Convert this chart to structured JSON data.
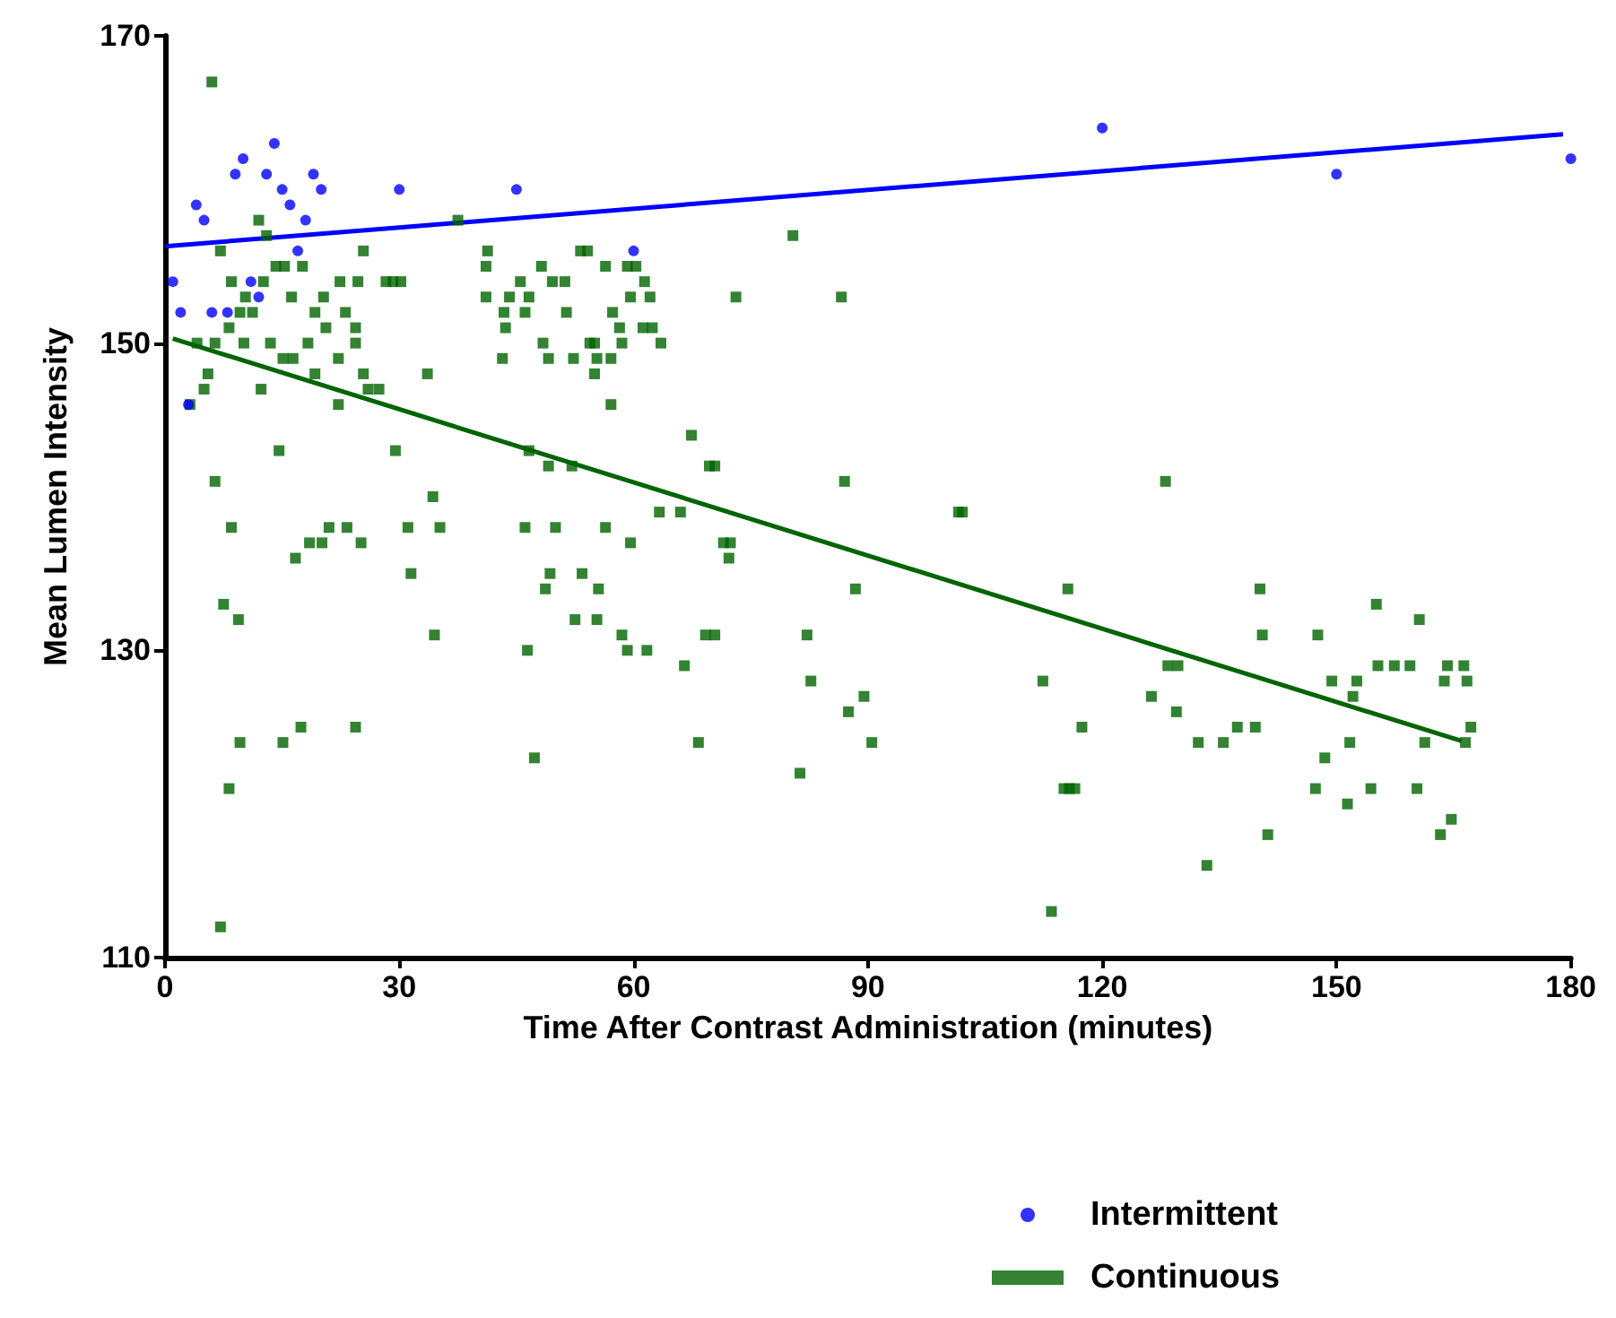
{
  "chart_data": {
    "type": "scatter",
    "xlabel": "Time After Contrast Administration (minutes)",
    "ylabel": "Mean Lumen Intensity",
    "xlim": [
      0,
      180
    ],
    "xticks": [
      0,
      30,
      60,
      90,
      120,
      150,
      180
    ],
    "ylim": [
      110,
      170
    ],
    "yticks": [
      110,
      130,
      150,
      170
    ],
    "grid": false,
    "legend": "bottom",
    "series": [
      {
        "name": "Intermittent",
        "color": "#0000ff",
        "marker": "circle",
        "x": [
          1,
          2,
          3,
          4,
          5,
          6,
          8,
          9,
          10,
          11,
          12,
          13,
          14,
          15,
          16,
          17,
          18,
          19,
          20,
          30,
          45,
          60,
          120,
          150,
          180
        ],
        "values": [
          154,
          152,
          146,
          159,
          158,
          152,
          152,
          161,
          162,
          154,
          153,
          161,
          163,
          160,
          159,
          156,
          158,
          161,
          160,
          160,
          160,
          156,
          164,
          161,
          162
        ]
      },
      {
        "name": "Continuous",
        "color": "#006400",
        "marker": "square",
        "x": [
          6,
          12,
          13,
          37.5,
          7.1,
          25.4,
          14.2,
          15.3,
          17.6,
          8.5,
          12.6,
          22.4,
          24.7,
          28.3,
          29.2,
          30.2,
          10.3,
          16.2,
          20.3,
          9.6,
          11.2,
          19.2,
          23.1,
          8.2,
          20.6,
          24.4,
          4.1,
          6.4,
          10.1,
          13.5,
          18.3,
          24.4,
          15.1,
          16.4,
          22.2,
          5.5,
          19.2,
          25.4,
          33.6,
          5,
          12.3,
          26,
          27.4,
          3.2,
          22.2,
          14.6,
          29.5,
          6.4,
          34.3,
          8.5,
          21,
          23.3,
          31.1,
          35.2,
          18.5,
          20.1,
          25.1,
          16.7,
          31.5,
          7.5,
          9.4,
          34.5,
          17.4,
          24.4,
          9.6,
          15.1,
          8.2,
          7.1,
          80.4,
          41.3,
          53.2,
          54.1,
          41.1,
          48.2,
          56.4,
          59.2,
          60.3,
          45.5,
          49.6,
          51.2,
          61.4,
          41.1,
          44.1,
          46.6,
          59.6,
          62.1,
          73.1,
          43.4,
          46.1,
          51.4,
          57.3,
          43.6,
          58.2,
          61.2,
          62.4,
          48.4,
          54.4,
          55,
          58.5,
          63.5,
          43.2,
          49.1,
          52.3,
          55.3,
          57.1,
          55,
          57.1,
          67.4,
          46.6,
          49.1,
          52.1,
          69.7,
          70.4,
          63.3,
          66,
          46.1,
          50,
          56.4,
          59.6,
          71.5,
          72.4,
          72.2,
          49.3,
          53.4,
          48.7,
          55.5,
          52.5,
          55.3,
          58.5,
          69.2,
          70.4,
          82.2,
          46.4,
          59.2,
          61.7,
          66.5,
          82.7,
          68.3,
          47.3,
          81.3,
          86.6,
          87,
          101.6,
          102.1,
          88.4,
          115.6,
          112.4,
          89.5,
          87.5,
          117.4,
          90.5,
          115.8,
          113.5,
          128.1,
          140.2,
          140.5,
          147.6,
          155.1,
          160.6,
          128.4,
          129.7,
          155.3,
          157.4,
          159.4,
          164.2,
          166.3,
          149.4,
          152.6,
          163.8,
          166.7,
          126.3,
          152.1,
          129.5,
          137.3,
          139.6,
          167.2,
          132.3,
          135.5,
          151.7,
          161.3,
          166.5,
          148.5,
          115.1,
          116.5,
          147.3,
          154.4,
          160.3,
          151.4,
          164.7,
          141.2,
          163.3,
          133.4
        ],
        "values": [
          167,
          158,
          157,
          158,
          156,
          156,
          155,
          155,
          155,
          154,
          154,
          154,
          154,
          154,
          154,
          154,
          153,
          153,
          153,
          152,
          152,
          152,
          152,
          151,
          151,
          151,
          150,
          150,
          150,
          150,
          150,
          150,
          149,
          149,
          149,
          148,
          148,
          148,
          148,
          147,
          147,
          147,
          147,
          146,
          146,
          143,
          143,
          141,
          140,
          138,
          138,
          138,
          138,
          138,
          137,
          137,
          137,
          136,
          135,
          133,
          132,
          131,
          125,
          125,
          124,
          124,
          121,
          112,
          157,
          156,
          156,
          156,
          155,
          155,
          155,
          155,
          155,
          154,
          154,
          154,
          154,
          153,
          153,
          153,
          153,
          153,
          153,
          152,
          152,
          152,
          152,
          151,
          151,
          151,
          151,
          150,
          150,
          150,
          150,
          150,
          149,
          149,
          149,
          149,
          149,
          148,
          146,
          144,
          143,
          142,
          142,
          142,
          142,
          139,
          139,
          138,
          138,
          138,
          137,
          137,
          137,
          136,
          135,
          135,
          134,
          134,
          132,
          132,
          131,
          131,
          131,
          131,
          130,
          130,
          130,
          129,
          128,
          124,
          123,
          122,
          153,
          141,
          139,
          139,
          134,
          134,
          128,
          127,
          126,
          125,
          124,
          121,
          113,
          141,
          134,
          131,
          131,
          133,
          132,
          129,
          129,
          129,
          129,
          129,
          129,
          129,
          128,
          128,
          128,
          128,
          127,
          127,
          126,
          125,
          125,
          125,
          124,
          124,
          124,
          124,
          124,
          123,
          121,
          121,
          121,
          121,
          121,
          120,
          119,
          118,
          118,
          116
        ]
      },
      {
        "type": "line",
        "color": "#0000ff",
        "marker": "none",
        "x": [
          0,
          179
        ],
        "values": [
          156.3,
          163.6
        ]
      },
      {
        "type": "line",
        "color": "#006400",
        "marker": "none",
        "x": [
          1,
          166
        ],
        "values": [
          150.3,
          124.1
        ]
      }
    ]
  }
}
